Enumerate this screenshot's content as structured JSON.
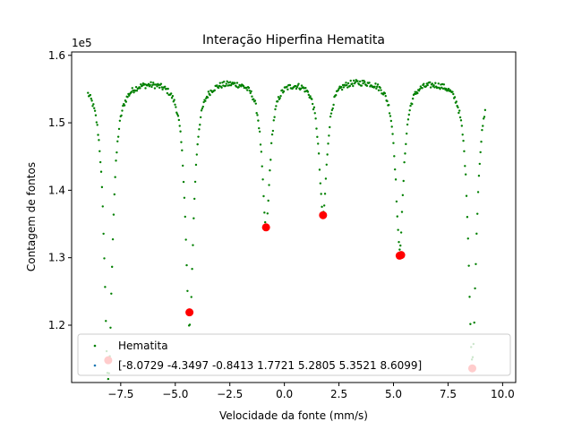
{
  "chart_data": {
    "type": "scatter",
    "title": "Interação Hiperfina Hematita",
    "xlabel": "Velocidade da fonte (mm/s)",
    "ylabel": "Contagem de fontos",
    "y_offset_label": "1e5",
    "xlim": [
      -9.75,
      10.6
    ],
    "ylim": [
      111500,
      160500
    ],
    "y_tick_multiplier": 100000,
    "x_ticks": [
      -7.5,
      -5.0,
      -2.5,
      0.0,
      2.5,
      5.0,
      7.5,
      10.0
    ],
    "x_tick_labels": [
      "−7.5",
      "−5.0",
      "−2.5",
      "0.0",
      "2.5",
      "5.0",
      "7.5",
      "10.0"
    ],
    "y_ticks": [
      120000,
      130000,
      140000,
      150000,
      160000
    ],
    "y_tick_labels": [
      "1.2",
      "1.3",
      "1.4",
      "1.5",
      "1.6"
    ],
    "grid": false,
    "legend_position": "lower-left",
    "baseline": 156800,
    "x_start": -9.0,
    "x_end": 9.2,
    "noise_amplitude": 450,
    "series": [
      {
        "name": "Hematita",
        "kind": "points",
        "color": "#008000",
        "dips": [
          {
            "center": -8.07,
            "depth": 45000,
            "width": 0.22
          },
          {
            "center": -4.35,
            "depth": 37000,
            "width": 0.22
          },
          {
            "center": -0.84,
            "depth": 22000,
            "width": 0.22
          },
          {
            "center": 1.77,
            "depth": 20000,
            "width": 0.22
          },
          {
            "center": 5.28,
            "depth": 25000,
            "width": 0.22
          },
          {
            "center": 8.61,
            "depth": 42000,
            "width": 0.22
          }
        ]
      },
      {
        "name": "[-8.0729 -4.3497 -0.8413  1.7721  5.2805  5.3521  8.6099]",
        "kind": "minima",
        "color": "#ff0000",
        "legend_color": "#1f77b4",
        "x": [
          -8.0729,
          -4.3497,
          -0.8413,
          1.7721,
          5.2805,
          5.3521,
          8.6099
        ],
        "y": [
          114800,
          121900,
          134500,
          136300,
          130300,
          130400,
          113600
        ]
      }
    ]
  }
}
